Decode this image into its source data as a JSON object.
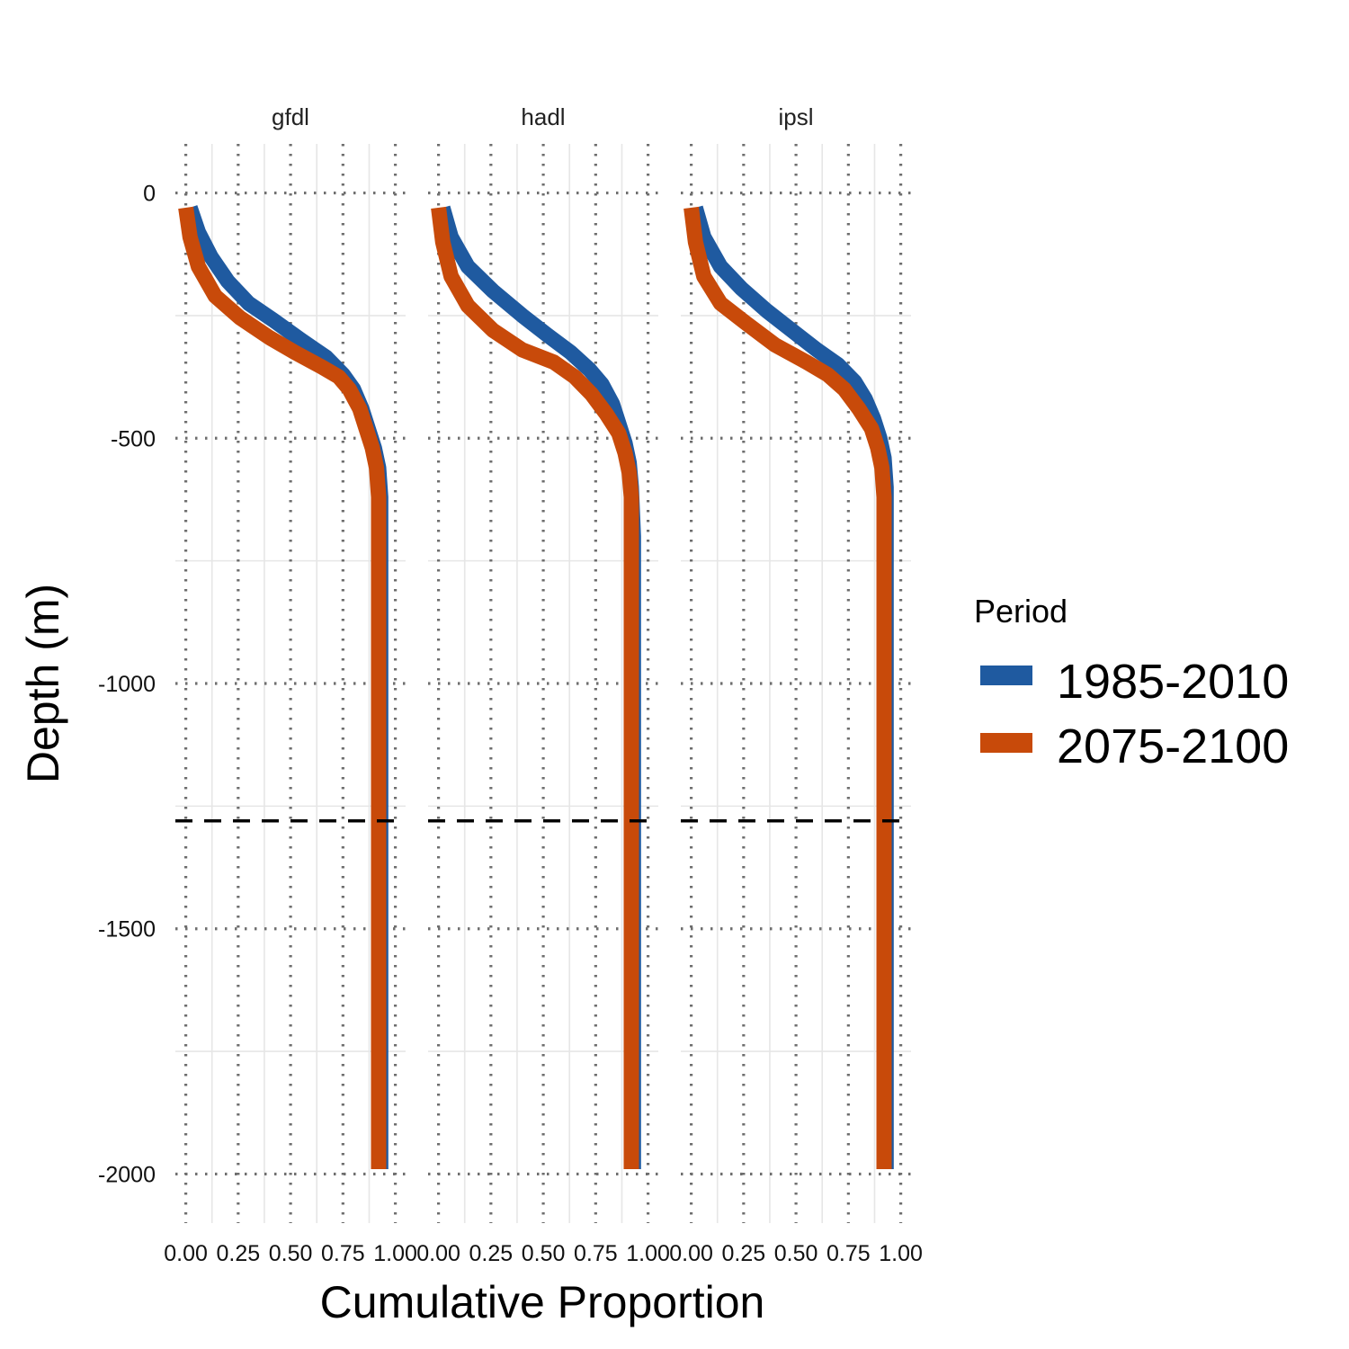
{
  "chart_data": {
    "type": "line",
    "facets": [
      "gfdl",
      "hadl",
      "ipsl"
    ],
    "xlabel": "Cumulative Proportion",
    "ylabel": "Depth (m)",
    "xlim": [
      0,
      1
    ],
    "ylim": [
      -2100,
      100
    ],
    "x_ticks": [
      "0.00",
      "0.25",
      "0.50",
      "0.75",
      "1.00"
    ],
    "y_ticks": [
      {
        "value": 0,
        "label": "0"
      },
      {
        "value": -500,
        "label": "-500"
      },
      {
        "value": -1000,
        "label": "-1000"
      },
      {
        "value": -1500,
        "label": "-1500"
      },
      {
        "value": -2000,
        "label": "-2000"
      }
    ],
    "reference_line": {
      "y": -1280,
      "style": "dashed",
      "color": "#000000"
    },
    "legend": {
      "title": "Period",
      "position": "right"
    },
    "series_colors": {
      "1985-2010": "#1f5aa0",
      "2075-2100": "#c84a0a"
    },
    "panels": [
      {
        "facet": "gfdl",
        "series": [
          {
            "name": "1985-2010",
            "points": [
              [
                0.02,
                -30
              ],
              [
                0.06,
                -80
              ],
              [
                0.12,
                -130
              ],
              [
                0.2,
                -180
              ],
              [
                0.3,
                -225
              ],
              [
                0.42,
                -260
              ],
              [
                0.55,
                -300
              ],
              [
                0.67,
                -335
              ],
              [
                0.75,
                -370
              ],
              [
                0.8,
                -400
              ],
              [
                0.84,
                -440
              ],
              [
                0.87,
                -480
              ],
              [
                0.9,
                -520
              ],
              [
                0.92,
                -560
              ],
              [
                0.93,
                -620
              ],
              [
                0.93,
                -700
              ],
              [
                0.93,
                -1000
              ],
              [
                0.93,
                -1500
              ],
              [
                0.93,
                -1990
              ]
            ]
          },
          {
            "name": "2075-2100",
            "points": [
              [
                0.0,
                -30
              ],
              [
                0.02,
                -90
              ],
              [
                0.06,
                -150
              ],
              [
                0.14,
                -210
              ],
              [
                0.26,
                -255
              ],
              [
                0.4,
                -295
              ],
              [
                0.52,
                -325
              ],
              [
                0.65,
                -355
              ],
              [
                0.73,
                -375
              ],
              [
                0.78,
                -400
              ],
              [
                0.83,
                -440
              ],
              [
                0.86,
                -480
              ],
              [
                0.89,
                -520
              ],
              [
                0.91,
                -560
              ],
              [
                0.92,
                -620
              ],
              [
                0.92,
                -700
              ],
              [
                0.92,
                -1000
              ],
              [
                0.92,
                -1500
              ],
              [
                0.92,
                -1990
              ]
            ]
          }
        ]
      },
      {
        "facet": "hadl",
        "series": [
          {
            "name": "1985-2010",
            "points": [
              [
                0.02,
                -30
              ],
              [
                0.06,
                -90
              ],
              [
                0.14,
                -150
              ],
              [
                0.26,
                -200
              ],
              [
                0.4,
                -250
              ],
              [
                0.52,
                -290
              ],
              [
                0.63,
                -325
              ],
              [
                0.72,
                -360
              ],
              [
                0.78,
                -390
              ],
              [
                0.83,
                -430
              ],
              [
                0.86,
                -470
              ],
              [
                0.89,
                -510
              ],
              [
                0.91,
                -550
              ],
              [
                0.92,
                -600
              ],
              [
                0.93,
                -700
              ],
              [
                0.93,
                -1000
              ],
              [
                0.93,
                -1500
              ],
              [
                0.93,
                -1990
              ]
            ]
          },
          {
            "name": "2075-2100",
            "points": [
              [
                0.0,
                -30
              ],
              [
                0.02,
                -100
              ],
              [
                0.06,
                -170
              ],
              [
                0.14,
                -230
              ],
              [
                0.26,
                -280
              ],
              [
                0.4,
                -320
              ],
              [
                0.55,
                -345
              ],
              [
                0.65,
                -375
              ],
              [
                0.73,
                -410
              ],
              [
                0.8,
                -450
              ],
              [
                0.86,
                -490
              ],
              [
                0.89,
                -530
              ],
              [
                0.91,
                -570
              ],
              [
                0.92,
                -620
              ],
              [
                0.92,
                -700
              ],
              [
                0.92,
                -1000
              ],
              [
                0.92,
                -1500
              ],
              [
                0.92,
                -1990
              ]
            ]
          }
        ]
      },
      {
        "facet": "ipsl",
        "series": [
          {
            "name": "1985-2010",
            "points": [
              [
                0.02,
                -30
              ],
              [
                0.06,
                -90
              ],
              [
                0.14,
                -150
              ],
              [
                0.24,
                -195
              ],
              [
                0.36,
                -240
              ],
              [
                0.48,
                -280
              ],
              [
                0.6,
                -320
              ],
              [
                0.7,
                -350
              ],
              [
                0.78,
                -385
              ],
              [
                0.83,
                -420
              ],
              [
                0.87,
                -460
              ],
              [
                0.9,
                -500
              ],
              [
                0.92,
                -540
              ],
              [
                0.93,
                -600
              ],
              [
                0.93,
                -700
              ],
              [
                0.93,
                -1000
              ],
              [
                0.93,
                -1500
              ],
              [
                0.93,
                -1990
              ]
            ]
          },
          {
            "name": "2075-2100",
            "points": [
              [
                0.0,
                -30
              ],
              [
                0.02,
                -100
              ],
              [
                0.06,
                -170
              ],
              [
                0.14,
                -225
              ],
              [
                0.26,
                -265
              ],
              [
                0.4,
                -310
              ],
              [
                0.55,
                -345
              ],
              [
                0.65,
                -370
              ],
              [
                0.73,
                -400
              ],
              [
                0.8,
                -440
              ],
              [
                0.86,
                -480
              ],
              [
                0.89,
                -520
              ],
              [
                0.91,
                -560
              ],
              [
                0.92,
                -620
              ],
              [
                0.92,
                -700
              ],
              [
                0.92,
                -1000
              ],
              [
                0.92,
                -1500
              ],
              [
                0.92,
                -1990
              ]
            ]
          }
        ]
      }
    ]
  }
}
